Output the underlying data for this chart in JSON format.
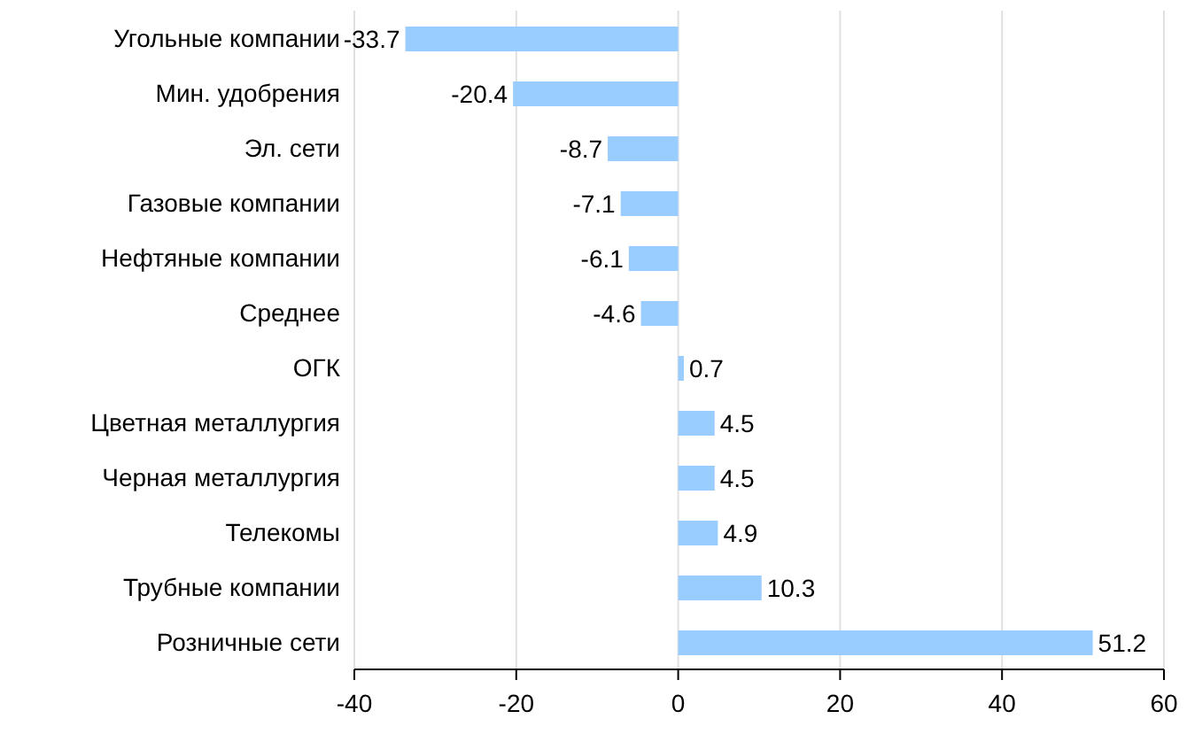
{
  "chart_data": {
    "type": "bar",
    "orientation": "horizontal",
    "categories": [
      "Угольные компании",
      "Мин. удобрения",
      "Эл. сети",
      "Газовые компании",
      "Нефтяные компании",
      "Среднее",
      "ОГК",
      "Цветная металлургия",
      "Черная металлургия",
      "Телекомы",
      "Трубные компании",
      "Розничные сети"
    ],
    "values": [
      -33.7,
      -20.4,
      -8.7,
      -7.1,
      -6.1,
      -4.6,
      0.7,
      4.5,
      4.5,
      4.9,
      10.3,
      51.2
    ],
    "color": "#99ccff",
    "xlim": [
      -40,
      60
    ],
    "xticks": [
      -40,
      -20,
      0,
      20,
      40,
      60
    ],
    "grid": "x",
    "data_labels": true,
    "legend": false
  }
}
